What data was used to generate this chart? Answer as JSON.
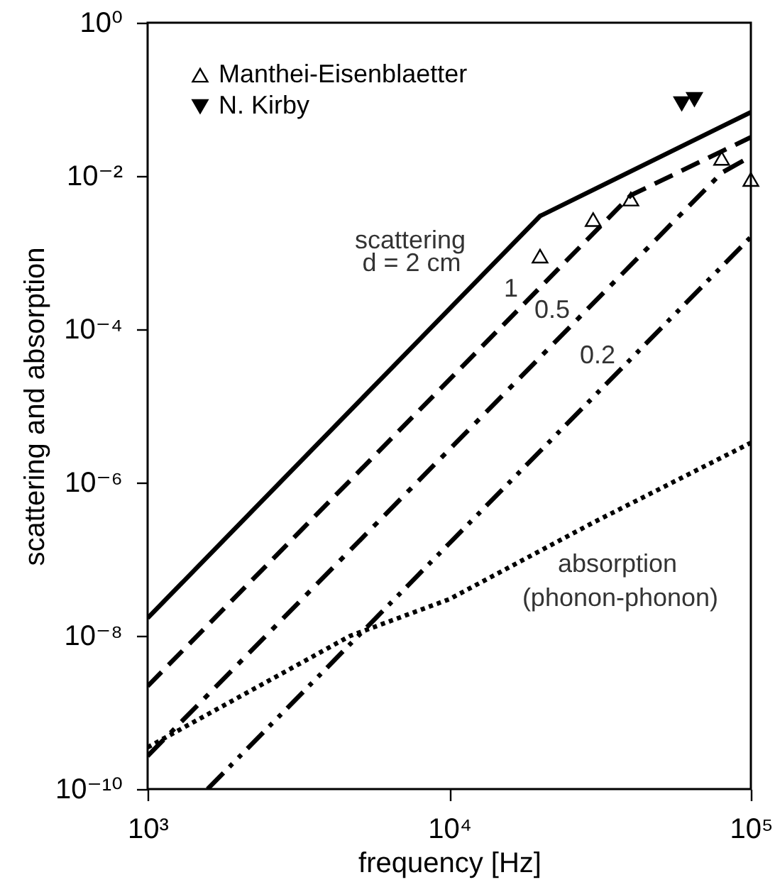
{
  "chart_data": {
    "type": "line",
    "xlabel": "frequency [Hz]",
    "ylabel": "scattering and absorption",
    "log": "xy",
    "xlim": [
      1000,
      100000
    ],
    "ylim": [
      1e-10,
      1
    ],
    "xticks": [
      {
        "value": 1000,
        "label": "10³"
      },
      {
        "value": 10000,
        "label": "10⁴"
      },
      {
        "value": 100000,
        "label": "10⁵"
      }
    ],
    "yticks": [
      {
        "value": 1e-10,
        "label": "10⁻¹⁰"
      },
      {
        "value": 1e-08,
        "label": "10⁻⁸"
      },
      {
        "value": 1e-06,
        "label": "10⁻⁶"
      },
      {
        "value": 0.0001,
        "label": "10⁻⁴"
      },
      {
        "value": 0.01,
        "label": "10⁻²"
      },
      {
        "value": 1,
        "label": "10⁰"
      }
    ],
    "grid": false,
    "legend": "top left",
    "series": [
      {
        "color": "#000000",
        "line_style": "solid",
        "x": [
          1000,
          20000,
          100000
        ],
        "values": [
          1.7e-08,
          0.003,
          0.068
        ]
      },
      {
        "color": "#000000",
        "line_style": "dashed",
        "x": [
          1000,
          40000,
          100000
        ],
        "values": [
          2.2e-09,
          0.0056,
          0.032
        ]
      },
      {
        "color": "#000000",
        "line_style": "dashdot",
        "x": [
          1000,
          80000,
          100000
        ],
        "values": [
          2.7e-10,
          0.011,
          0.018
        ]
      },
      {
        "color": "#000000",
        "line_style": "dashdotdot",
        "x": [
          1580,
          100000
        ],
        "values": [
          1e-10,
          0.0016
        ]
      },
      {
        "color": "#000000",
        "line_style": "dotted",
        "x": [
          1000,
          4700,
          10000,
          30000,
          100000
        ],
        "values": [
          3.5e-10,
          1e-08,
          3e-08,
          3e-07,
          3.3e-06
        ]
      },
      {
        "type": "scatter",
        "name": "Manthei-Eisenblaetter",
        "color": "#000000",
        "marker": "triangle",
        "x": [
          20000,
          30000,
          40000,
          80000,
          100000
        ],
        "values": [
          0.0009,
          0.0027,
          0.005,
          0.017,
          0.009
        ]
      },
      {
        "type": "scatter",
        "name": "N. Kirby",
        "color": "#000000",
        "marker": "triangle-down",
        "x": [
          59000,
          65000
        ],
        "values": [
          0.088,
          0.1
        ]
      }
    ],
    "annotations": [
      "scattering",
      "d = 2 cm",
      "1",
      "0.5",
      "0.2",
      "absorption",
      "(phonon-phonon)"
    ]
  }
}
